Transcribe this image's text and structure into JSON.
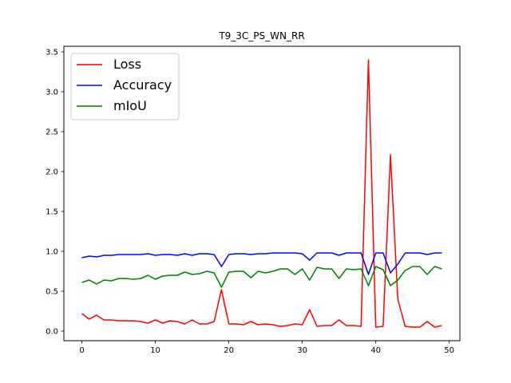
{
  "chart_data": {
    "type": "line",
    "title": "T9_3C_PS_WN_RR",
    "xlabel": "",
    "ylabel": "",
    "xlim": [
      -2.45,
      51.45
    ],
    "ylim": [
      -0.12,
      3.57
    ],
    "xticks": [
      0,
      10,
      20,
      30,
      40,
      50
    ],
    "yticks": [
      0.0,
      0.5,
      1.0,
      1.5,
      2.0,
      2.5,
      3.0,
      3.5
    ],
    "grid": false,
    "legend_position": "top-left",
    "x": [
      0,
      1,
      2,
      3,
      4,
      5,
      6,
      7,
      8,
      9,
      10,
      11,
      12,
      13,
      14,
      15,
      16,
      17,
      18,
      19,
      20,
      21,
      22,
      23,
      24,
      25,
      26,
      27,
      28,
      29,
      30,
      31,
      32,
      33,
      34,
      35,
      36,
      37,
      38,
      39,
      40,
      41,
      42,
      43,
      44,
      45,
      46,
      47,
      48,
      49
    ],
    "series": [
      {
        "name": "Loss",
        "color": "#ff0000",
        "values": [
          0.22,
          0.15,
          0.2,
          0.14,
          0.14,
          0.13,
          0.13,
          0.13,
          0.12,
          0.1,
          0.14,
          0.1,
          0.13,
          0.12,
          0.09,
          0.14,
          0.09,
          0.09,
          0.12,
          0.52,
          0.09,
          0.09,
          0.08,
          0.12,
          0.08,
          0.09,
          0.08,
          0.06,
          0.07,
          0.09,
          0.08,
          0.27,
          0.06,
          0.07,
          0.07,
          0.14,
          0.07,
          0.07,
          0.06,
          3.4,
          0.05,
          0.06,
          2.21,
          0.4,
          0.06,
          0.05,
          0.05,
          0.12,
          0.05,
          0.07
        ]
      },
      {
        "name": "Accuracy",
        "color": "#0000ff",
        "values": [
          0.92,
          0.94,
          0.93,
          0.95,
          0.95,
          0.96,
          0.96,
          0.96,
          0.96,
          0.97,
          0.95,
          0.96,
          0.96,
          0.95,
          0.97,
          0.95,
          0.97,
          0.97,
          0.96,
          0.81,
          0.96,
          0.97,
          0.97,
          0.96,
          0.97,
          0.97,
          0.98,
          0.98,
          0.98,
          0.98,
          0.97,
          0.89,
          0.98,
          0.98,
          0.98,
          0.95,
          0.98,
          0.98,
          0.98,
          0.71,
          0.98,
          0.98,
          0.73,
          0.84,
          0.98,
          0.98,
          0.98,
          0.96,
          0.98,
          0.98
        ]
      },
      {
        "name": "mIoU",
        "color": "#008000",
        "values": [
          0.61,
          0.64,
          0.59,
          0.64,
          0.63,
          0.66,
          0.66,
          0.65,
          0.66,
          0.7,
          0.65,
          0.69,
          0.7,
          0.7,
          0.74,
          0.71,
          0.72,
          0.75,
          0.73,
          0.55,
          0.74,
          0.75,
          0.75,
          0.67,
          0.75,
          0.73,
          0.75,
          0.78,
          0.78,
          0.71,
          0.78,
          0.64,
          0.8,
          0.78,
          0.78,
          0.66,
          0.78,
          0.77,
          0.78,
          0.57,
          0.81,
          0.77,
          0.57,
          0.64,
          0.76,
          0.81,
          0.81,
          0.71,
          0.81,
          0.78
        ]
      }
    ]
  }
}
